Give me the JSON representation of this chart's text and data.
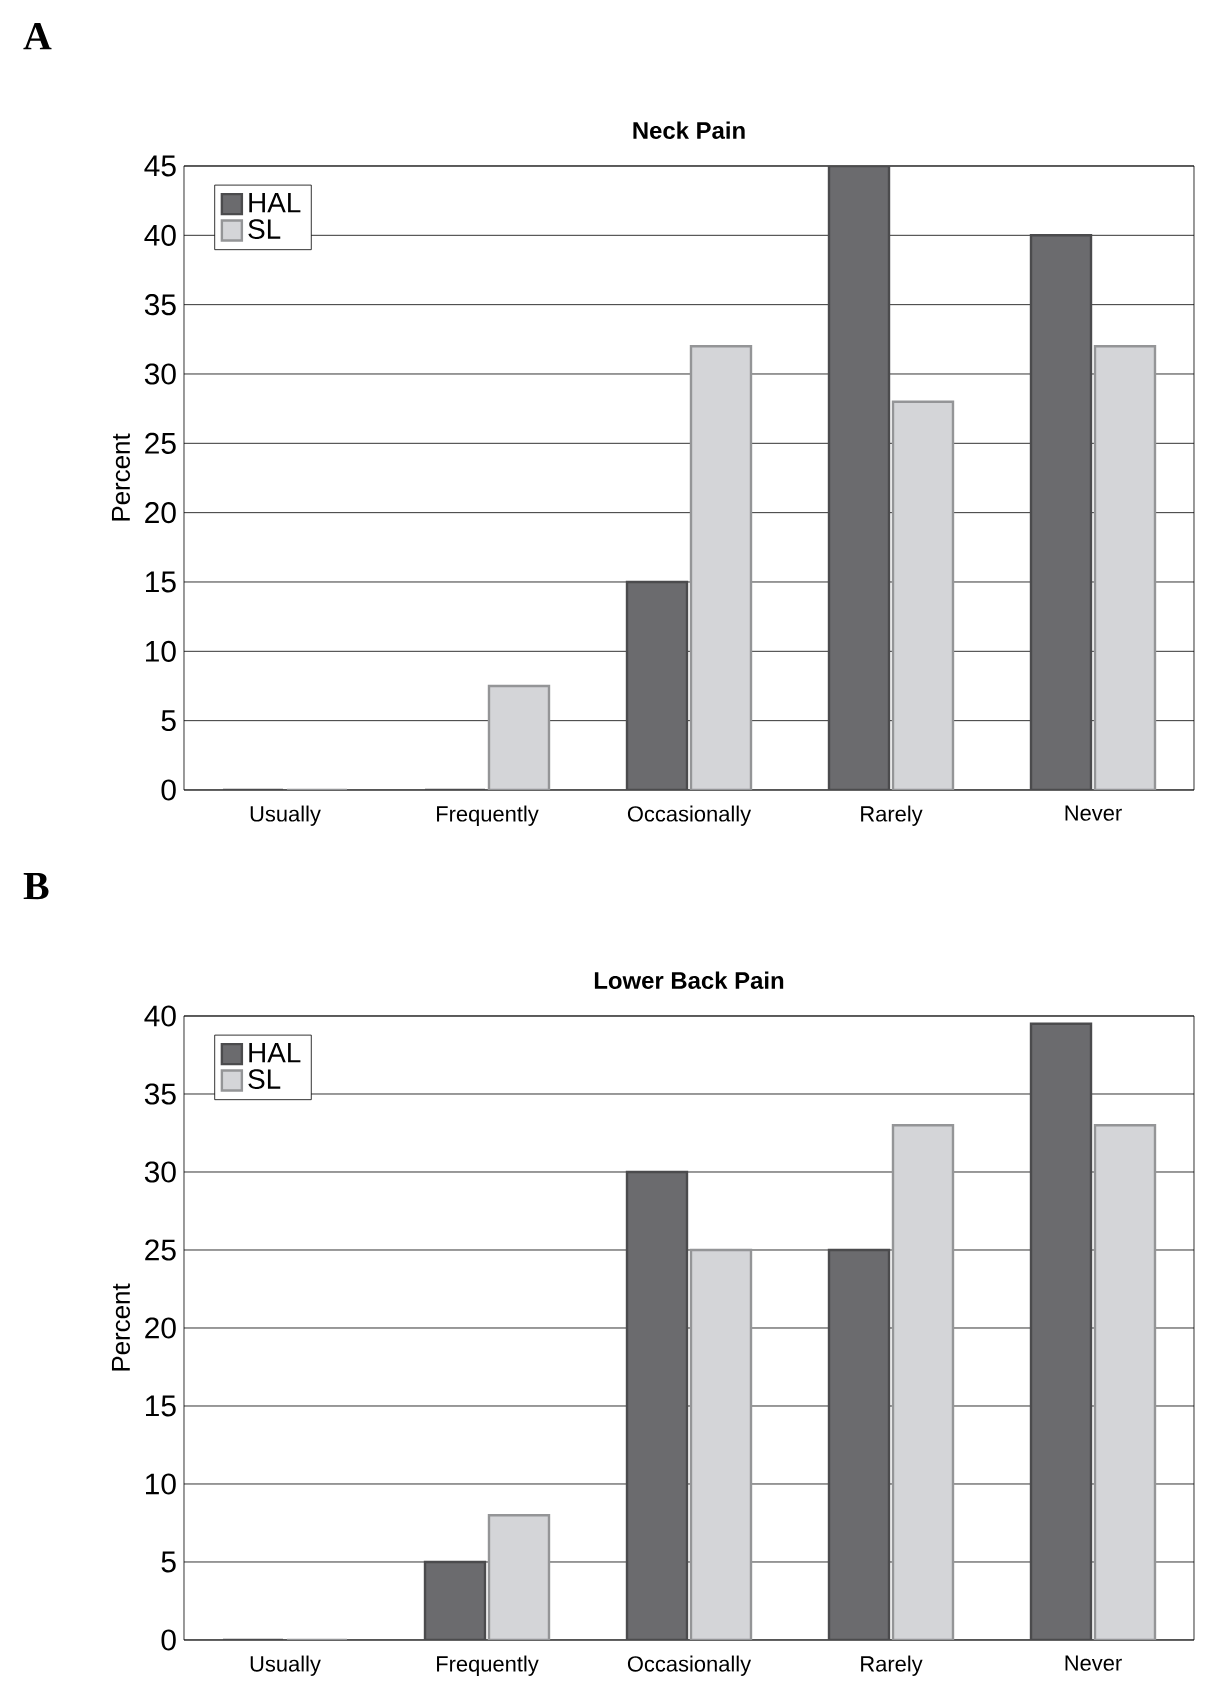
{
  "chart_data": [
    {
      "type": "bar",
      "title": "Neck Pain",
      "ylabel": "Percent",
      "annotations": [
        "A"
      ],
      "categories": [
        "Usually",
        "Frequently",
        "Occasionally",
        "Rarely",
        "Never"
      ],
      "series": [
        {
          "name": "HAL",
          "color": "#6b6b6e",
          "values": [
            0,
            0,
            15,
            45,
            40
          ]
        },
        {
          "name": "SL",
          "color": "#d4d5d8",
          "values": [
            0,
            7.5,
            32,
            28,
            32
          ]
        }
      ],
      "ylim": [
        0,
        45
      ],
      "yticks": [
        0,
        5,
        10,
        15,
        20,
        25,
        30,
        35,
        40,
        45
      ],
      "grid": "y",
      "legend": "top left"
    },
    {
      "type": "bar",
      "title": "Lower Back Pain",
      "ylabel": "Percent",
      "annotations": [
        "B"
      ],
      "categories": [
        "Usually",
        "Frequently",
        "Occasionally",
        "Rarely",
        "Never"
      ],
      "series": [
        {
          "name": "HAL",
          "color": "#6b6b6e",
          "values": [
            0,
            5,
            30,
            25,
            39.5
          ]
        },
        {
          "name": "SL",
          "color": "#d4d5d8",
          "values": [
            0,
            8,
            25,
            33,
            33
          ]
        }
      ],
      "ylim": [
        0,
        40
      ],
      "yticks": [
        0,
        5,
        10,
        15,
        20,
        25,
        30,
        35,
        40
      ],
      "grid": "y",
      "legend": "top left"
    }
  ]
}
